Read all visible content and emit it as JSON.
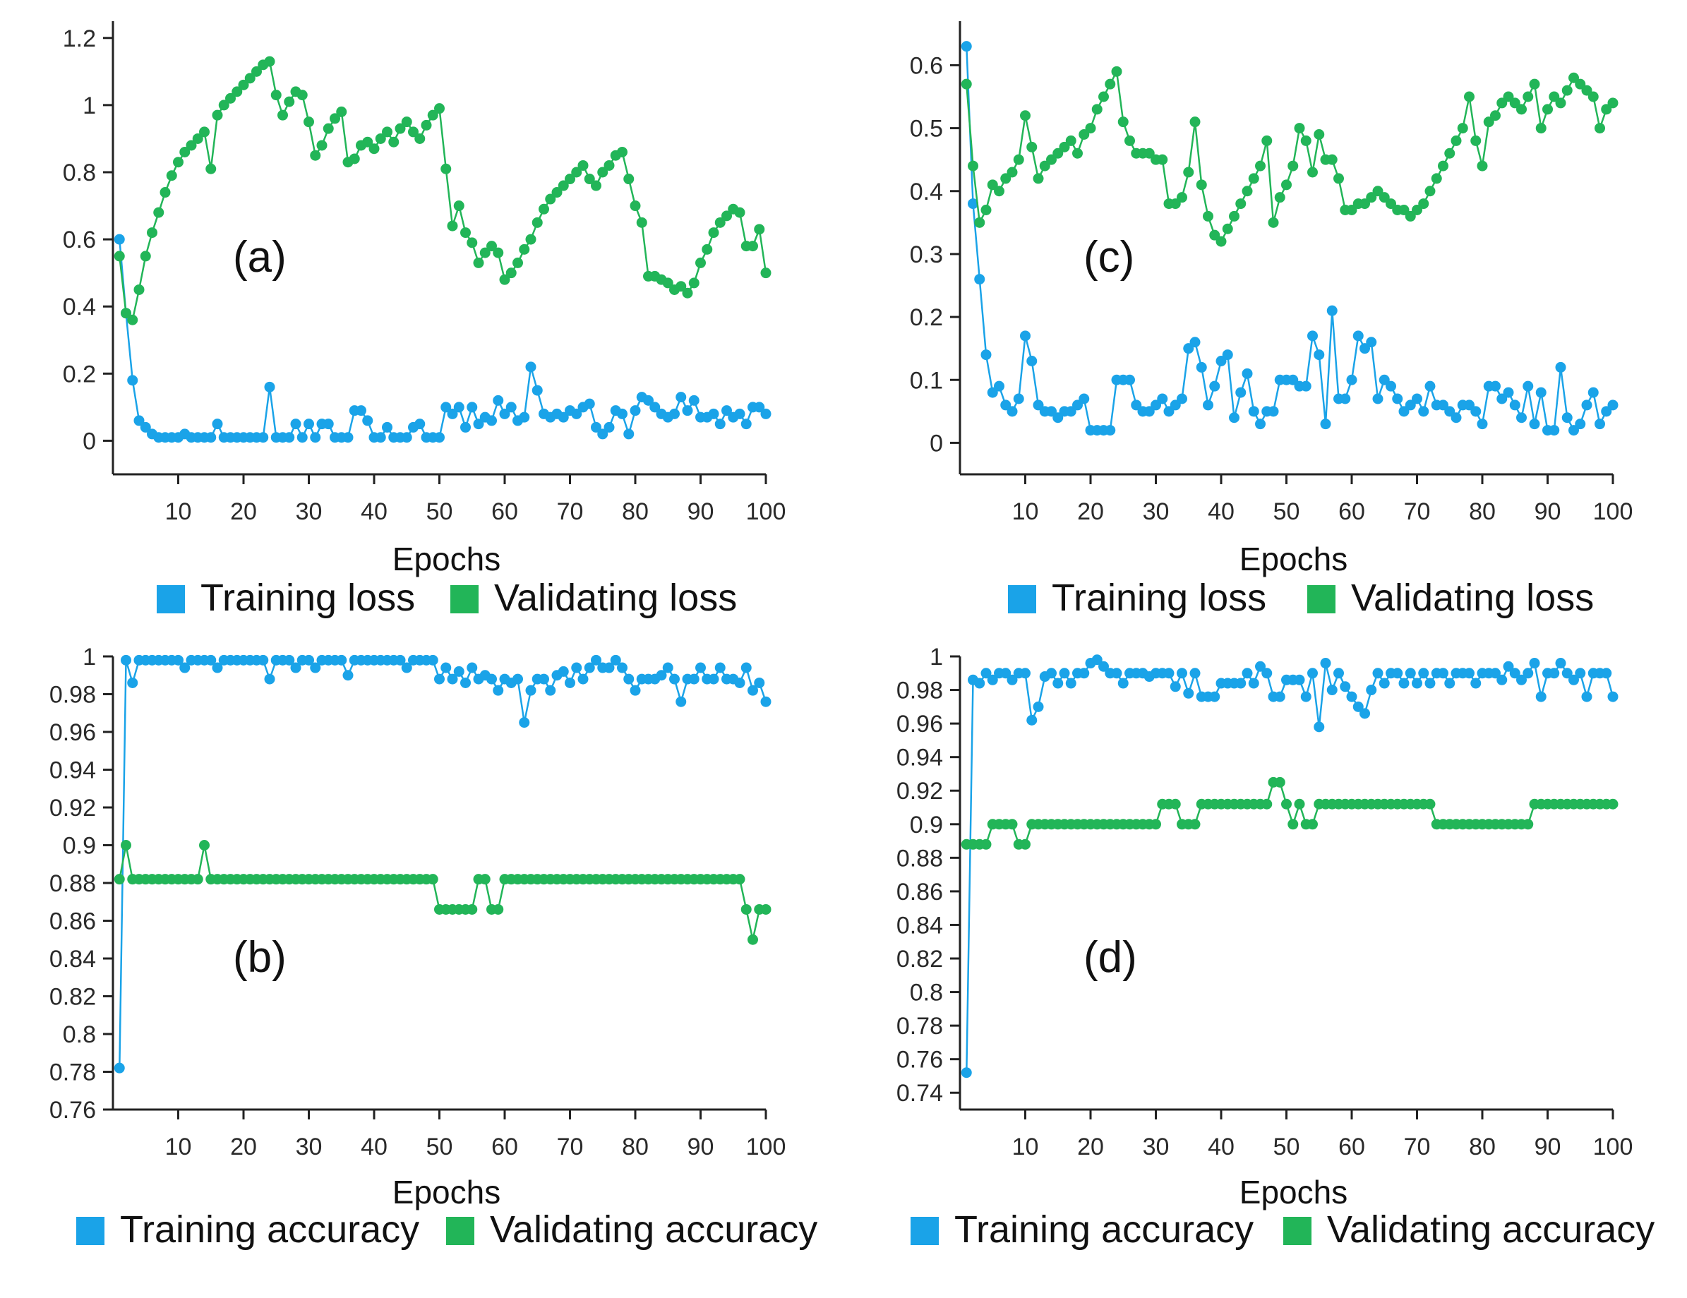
{
  "colors": {
    "training": "#1aa3e8",
    "validating": "#22b558",
    "axis": "#222222"
  },
  "chart_data": [
    {
      "id": "a",
      "type": "line",
      "panel_label": "(a)",
      "xlabel": "Epochs",
      "ylabel": "",
      "xlim": [
        0,
        100
      ],
      "ylim": [
        -0.1,
        1.25
      ],
      "xticks": [
        10,
        20,
        30,
        40,
        50,
        60,
        70,
        80,
        90,
        100
      ],
      "xtick_labels": [
        "10",
        "20",
        "30",
        "40",
        "50",
        "60",
        "70",
        "80",
        "90",
        "100"
      ],
      "yticks": [
        0,
        0.2,
        0.4,
        0.6,
        0.8,
        1,
        1.2
      ],
      "ytick_labels": [
        "0",
        "0.2",
        "0.4",
        "0.6",
        "0.8",
        "1",
        "1.2"
      ],
      "legend": [
        "Training loss",
        "Validating loss"
      ],
      "series": [
        {
          "name": "Training loss",
          "color_key": "training",
          "values": [
            0.6,
            0.38,
            0.18,
            0.06,
            0.04,
            0.02,
            0.01,
            0.01,
            0.01,
            0.01,
            0.02,
            0.01,
            0.01,
            0.01,
            0.01,
            0.05,
            0.01,
            0.01,
            0.01,
            0.01,
            0.01,
            0.01,
            0.01,
            0.16,
            0.01,
            0.01,
            0.01,
            0.05,
            0.01,
            0.05,
            0.01,
            0.05,
            0.05,
            0.01,
            0.01,
            0.01,
            0.09,
            0.09,
            0.06,
            0.01,
            0.01,
            0.04,
            0.01,
            0.01,
            0.01,
            0.04,
            0.05,
            0.01,
            0.01,
            0.01,
            0.1,
            0.08,
            0.1,
            0.04,
            0.1,
            0.05,
            0.07,
            0.06,
            0.12,
            0.08,
            0.1,
            0.06,
            0.07,
            0.22,
            0.15,
            0.08,
            0.07,
            0.08,
            0.07,
            0.09,
            0.08,
            0.1,
            0.11,
            0.04,
            0.02,
            0.04,
            0.09,
            0.08,
            0.02,
            0.09,
            0.13,
            0.12,
            0.1,
            0.08,
            0.07,
            0.08,
            0.13,
            0.09,
            0.12,
            0.07,
            0.07,
            0.08,
            0.05,
            0.09,
            0.07,
            0.08,
            0.05,
            0.1,
            0.1,
            0.08
          ]
        },
        {
          "name": "Validating loss",
          "color_key": "validating",
          "values": [
            0.55,
            0.38,
            0.36,
            0.45,
            0.55,
            0.62,
            0.68,
            0.74,
            0.79,
            0.83,
            0.86,
            0.88,
            0.9,
            0.92,
            0.81,
            0.97,
            1.0,
            1.02,
            1.04,
            1.06,
            1.08,
            1.1,
            1.12,
            1.13,
            1.03,
            0.97,
            1.01,
            1.04,
            1.03,
            0.95,
            0.85,
            0.88,
            0.93,
            0.96,
            0.98,
            0.83,
            0.84,
            0.88,
            0.89,
            0.87,
            0.9,
            0.92,
            0.89,
            0.93,
            0.95,
            0.92,
            0.9,
            0.94,
            0.97,
            0.99,
            0.81,
            0.64,
            0.7,
            0.62,
            0.59,
            0.53,
            0.56,
            0.58,
            0.56,
            0.48,
            0.5,
            0.53,
            0.57,
            0.6,
            0.65,
            0.69,
            0.72,
            0.74,
            0.76,
            0.78,
            0.8,
            0.82,
            0.78,
            0.76,
            0.8,
            0.82,
            0.85,
            0.86,
            0.78,
            0.7,
            0.65,
            0.49,
            0.49,
            0.48,
            0.47,
            0.45,
            0.46,
            0.44,
            0.47,
            0.53,
            0.57,
            0.62,
            0.65,
            0.67,
            0.69,
            0.68,
            0.58,
            0.58,
            0.63,
            0.5
          ]
        }
      ]
    },
    {
      "id": "c",
      "type": "line",
      "panel_label": "(c)",
      "xlabel": "Epochs",
      "ylabel": "",
      "xlim": [
        0,
        100
      ],
      "ylim": [
        -0.05,
        0.67
      ],
      "xticks": [
        10,
        20,
        30,
        40,
        50,
        60,
        70,
        80,
        90,
        100
      ],
      "xtick_labels": [
        "10",
        "20",
        "30",
        "40",
        "50",
        "60",
        "70",
        "80",
        "90",
        "100"
      ],
      "yticks": [
        0,
        0.1,
        0.2,
        0.3,
        0.4,
        0.5,
        0.6
      ],
      "ytick_labels": [
        "0",
        "0.1",
        "0.2",
        "0.3",
        "0.4",
        "0.5",
        "0.6"
      ],
      "legend": [
        "Training loss",
        "Validating loss"
      ],
      "series": [
        {
          "name": "Training loss",
          "color_key": "training",
          "values": [
            0.63,
            0.38,
            0.26,
            0.14,
            0.08,
            0.09,
            0.06,
            0.05,
            0.07,
            0.17,
            0.13,
            0.06,
            0.05,
            0.05,
            0.04,
            0.05,
            0.05,
            0.06,
            0.07,
            0.02,
            0.02,
            0.02,
            0.02,
            0.1,
            0.1,
            0.1,
            0.06,
            0.05,
            0.05,
            0.06,
            0.07,
            0.05,
            0.06,
            0.07,
            0.15,
            0.16,
            0.12,
            0.06,
            0.09,
            0.13,
            0.14,
            0.04,
            0.08,
            0.11,
            0.05,
            0.03,
            0.05,
            0.05,
            0.1,
            0.1,
            0.1,
            0.09,
            0.09,
            0.17,
            0.14,
            0.03,
            0.21,
            0.07,
            0.07,
            0.1,
            0.17,
            0.15,
            0.16,
            0.07,
            0.1,
            0.09,
            0.07,
            0.05,
            0.06,
            0.07,
            0.05,
            0.09,
            0.06,
            0.06,
            0.05,
            0.04,
            0.06,
            0.06,
            0.05,
            0.03,
            0.09,
            0.09,
            0.07,
            0.08,
            0.06,
            0.04,
            0.09,
            0.03,
            0.08,
            0.02,
            0.02,
            0.12,
            0.04,
            0.02,
            0.03,
            0.06,
            0.08,
            0.03,
            0.05,
            0.06
          ]
        },
        {
          "name": "Validating loss",
          "color_key": "validating",
          "values": [
            0.57,
            0.44,
            0.35,
            0.37,
            0.41,
            0.4,
            0.42,
            0.43,
            0.45,
            0.52,
            0.47,
            0.42,
            0.44,
            0.45,
            0.46,
            0.47,
            0.48,
            0.46,
            0.49,
            0.5,
            0.53,
            0.55,
            0.57,
            0.59,
            0.51,
            0.48,
            0.46,
            0.46,
            0.46,
            0.45,
            0.45,
            0.38,
            0.38,
            0.39,
            0.43,
            0.51,
            0.41,
            0.36,
            0.33,
            0.32,
            0.34,
            0.36,
            0.38,
            0.4,
            0.42,
            0.44,
            0.48,
            0.35,
            0.39,
            0.41,
            0.44,
            0.5,
            0.48,
            0.43,
            0.49,
            0.45,
            0.45,
            0.42,
            0.37,
            0.37,
            0.38,
            0.38,
            0.39,
            0.4,
            0.39,
            0.38,
            0.37,
            0.37,
            0.36,
            0.37,
            0.38,
            0.4,
            0.42,
            0.44,
            0.46,
            0.48,
            0.5,
            0.55,
            0.48,
            0.44,
            0.51,
            0.52,
            0.54,
            0.55,
            0.54,
            0.53,
            0.55,
            0.57,
            0.5,
            0.53,
            0.55,
            0.54,
            0.56,
            0.58,
            0.57,
            0.56,
            0.55,
            0.5,
            0.53,
            0.54
          ]
        }
      ]
    },
    {
      "id": "b",
      "type": "line",
      "panel_label": "(b)",
      "xlabel": "Epochs",
      "ylabel": "",
      "xlim": [
        0,
        100
      ],
      "ylim": [
        0.76,
        1.0
      ],
      "xticks": [
        10,
        20,
        30,
        40,
        50,
        60,
        70,
        80,
        90,
        100
      ],
      "xtick_labels": [
        "10",
        "20",
        "30",
        "40",
        "50",
        "60",
        "70",
        "80",
        "90",
        "100"
      ],
      "yticks": [
        0.76,
        0.78,
        0.8,
        0.82,
        0.84,
        0.86,
        0.88,
        0.9,
        0.92,
        0.94,
        0.96,
        0.98,
        1
      ],
      "ytick_labels": [
        "0.76",
        "0.78",
        "0.8",
        "0.82",
        "0.84",
        "0.86",
        "0.88",
        "0.9",
        "0.92",
        "0.94",
        "0.96",
        "0.98",
        "1"
      ],
      "legend": [
        "Training accuracy",
        "Validating accuracy"
      ],
      "series": [
        {
          "name": "Training accuracy",
          "color_key": "training",
          "values": [
            0.782,
            0.998,
            0.986,
            0.998,
            0.998,
            0.998,
            0.998,
            0.998,
            0.998,
            0.998,
            0.994,
            0.998,
            0.998,
            0.998,
            0.998,
            0.994,
            0.998,
            0.998,
            0.998,
            0.998,
            0.998,
            0.998,
            0.998,
            0.988,
            0.998,
            0.998,
            0.998,
            0.994,
            0.998,
            0.998,
            0.994,
            0.998,
            0.998,
            0.998,
            0.998,
            0.99,
            0.998,
            0.998,
            0.998,
            0.998,
            0.998,
            0.998,
            0.998,
            0.998,
            0.994,
            0.998,
            0.998,
            0.998,
            0.998,
            0.988,
            0.994,
            0.988,
            0.992,
            0.986,
            0.994,
            0.988,
            0.99,
            0.988,
            0.982,
            0.988,
            0.986,
            0.988,
            0.965,
            0.982,
            0.988,
            0.988,
            0.982,
            0.99,
            0.992,
            0.986,
            0.994,
            0.988,
            0.994,
            0.998,
            0.994,
            0.994,
            0.998,
            0.994,
            0.988,
            0.982,
            0.988,
            0.988,
            0.988,
            0.99,
            0.994,
            0.988,
            0.976,
            0.988,
            0.988,
            0.994,
            0.988,
            0.988,
            0.994,
            0.988,
            0.988,
            0.986,
            0.994,
            0.982,
            0.986,
            0.976
          ]
        },
        {
          "name": "Validating accuracy",
          "color_key": "validating",
          "values": [
            0.882,
            0.9,
            0.882,
            0.882,
            0.882,
            0.882,
            0.882,
            0.882,
            0.882,
            0.882,
            0.882,
            0.882,
            0.882,
            0.9,
            0.882,
            0.882,
            0.882,
            0.882,
            0.882,
            0.882,
            0.882,
            0.882,
            0.882,
            0.882,
            0.882,
            0.882,
            0.882,
            0.882,
            0.882,
            0.882,
            0.882,
            0.882,
            0.882,
            0.882,
            0.882,
            0.882,
            0.882,
            0.882,
            0.882,
            0.882,
            0.882,
            0.882,
            0.882,
            0.882,
            0.882,
            0.882,
            0.882,
            0.882,
            0.882,
            0.866,
            0.866,
            0.866,
            0.866,
            0.866,
            0.866,
            0.882,
            0.882,
            0.866,
            0.866,
            0.882,
            0.882,
            0.882,
            0.882,
            0.882,
            0.882,
            0.882,
            0.882,
            0.882,
            0.882,
            0.882,
            0.882,
            0.882,
            0.882,
            0.882,
            0.882,
            0.882,
            0.882,
            0.882,
            0.882,
            0.882,
            0.882,
            0.882,
            0.882,
            0.882,
            0.882,
            0.882,
            0.882,
            0.882,
            0.882,
            0.882,
            0.882,
            0.882,
            0.882,
            0.882,
            0.882,
            0.882,
            0.866,
            0.85,
            0.866,
            0.866
          ]
        }
      ]
    },
    {
      "id": "d",
      "type": "line",
      "panel_label": "(d)",
      "xlabel": "Epochs",
      "ylabel": "",
      "xlim": [
        0,
        100
      ],
      "ylim": [
        0.73,
        1.0
      ],
      "xticks": [
        10,
        20,
        30,
        40,
        50,
        60,
        70,
        80,
        90,
        100
      ],
      "xtick_labels": [
        "10",
        "20",
        "30",
        "40",
        "50",
        "60",
        "70",
        "80",
        "90",
        "100"
      ],
      "yticks": [
        0.74,
        0.76,
        0.78,
        0.8,
        0.82,
        0.84,
        0.86,
        0.88,
        0.9,
        0.92,
        0.94,
        0.96,
        0.98,
        1
      ],
      "ytick_labels": [
        "0.74",
        "0.76",
        "0.78",
        "0.8",
        "0.82",
        "0.84",
        "0.86",
        "0.88",
        "0.9",
        "0.92",
        "0.94",
        "0.96",
        "0.98",
        "1"
      ],
      "legend": [
        "Training accuracy",
        "Validating accuracy"
      ],
      "series": [
        {
          "name": "Training accuracy",
          "color_key": "training",
          "values": [
            0.752,
            0.986,
            0.984,
            0.99,
            0.986,
            0.99,
            0.99,
            0.986,
            0.99,
            0.99,
            0.962,
            0.97,
            0.988,
            0.99,
            0.984,
            0.99,
            0.984,
            0.99,
            0.99,
            0.996,
            0.998,
            0.994,
            0.99,
            0.99,
            0.984,
            0.99,
            0.99,
            0.99,
            0.988,
            0.99,
            0.99,
            0.99,
            0.982,
            0.99,
            0.978,
            0.99,
            0.976,
            0.976,
            0.976,
            0.984,
            0.984,
            0.984,
            0.984,
            0.99,
            0.984,
            0.994,
            0.99,
            0.976,
            0.976,
            0.986,
            0.986,
            0.986,
            0.976,
            0.99,
            0.958,
            0.996,
            0.98,
            0.99,
            0.982,
            0.976,
            0.97,
            0.966,
            0.98,
            0.99,
            0.984,
            0.99,
            0.99,
            0.984,
            0.99,
            0.984,
            0.99,
            0.984,
            0.99,
            0.99,
            0.984,
            0.99,
            0.99,
            0.99,
            0.984,
            0.99,
            0.99,
            0.99,
            0.986,
            0.994,
            0.99,
            0.986,
            0.99,
            0.996,
            0.976,
            0.99,
            0.99,
            0.996,
            0.99,
            0.986,
            0.99,
            0.976,
            0.99,
            0.99,
            0.99,
            0.976
          ]
        },
        {
          "name": "Validating accuracy",
          "color_key": "validating",
          "values": [
            0.888,
            0.888,
            0.888,
            0.888,
            0.9,
            0.9,
            0.9,
            0.9,
            0.888,
            0.888,
            0.9,
            0.9,
            0.9,
            0.9,
            0.9,
            0.9,
            0.9,
            0.9,
            0.9,
            0.9,
            0.9,
            0.9,
            0.9,
            0.9,
            0.9,
            0.9,
            0.9,
            0.9,
            0.9,
            0.9,
            0.912,
            0.912,
            0.912,
            0.9,
            0.9,
            0.9,
            0.912,
            0.912,
            0.912,
            0.912,
            0.912,
            0.912,
            0.912,
            0.912,
            0.912,
            0.912,
            0.912,
            0.925,
            0.925,
            0.912,
            0.9,
            0.912,
            0.9,
            0.9,
            0.912,
            0.912,
            0.912,
            0.912,
            0.912,
            0.912,
            0.912,
            0.912,
            0.912,
            0.912,
            0.912,
            0.912,
            0.912,
            0.912,
            0.912,
            0.912,
            0.912,
            0.912,
            0.9,
            0.9,
            0.9,
            0.9,
            0.9,
            0.9,
            0.9,
            0.9,
            0.9,
            0.9,
            0.9,
            0.9,
            0.9,
            0.9,
            0.9,
            0.912,
            0.912,
            0.912,
            0.912,
            0.912,
            0.912,
            0.912,
            0.912,
            0.912,
            0.912,
            0.912,
            0.912,
            0.912
          ]
        }
      ]
    }
  ]
}
